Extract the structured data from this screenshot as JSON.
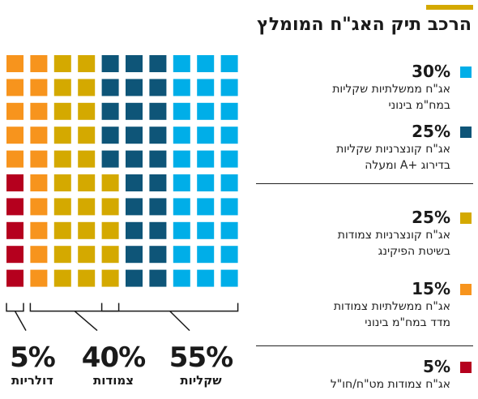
{
  "title": "הרכב תיק האג\"ח המומלץ",
  "colors": {
    "accent": "#d4a900",
    "corp_cpi": "#00aee8",
    "corp_aplus": "#0e5578",
    "cpi_corp": "#d4a900",
    "cpi_gov": "#f7941d",
    "foreign": "#b5001e"
  },
  "legend": [
    {
      "key": "gov_nominal",
      "percent": "30%",
      "color": "#00aee8",
      "lines": [
        "אג\"ח ממשלתיות שקליות",
        "במח\"מ בינוני"
      ]
    },
    {
      "key": "corp_nominal",
      "percent": "25%",
      "color": "#0e5578",
      "lines": [
        "אג\"ח קונצרניות שקליות",
        "בדירוג +A ומעלה"
      ]
    },
    {
      "key": "corp_cpi",
      "percent": "25%",
      "color": "#d4a900",
      "lines": [
        "אג\"ח קונצרניות צמודות",
        "בשיטת הפיקינג"
      ]
    },
    {
      "key": "gov_cpi",
      "percent": "15%",
      "color": "#f7941d",
      "lines": [
        "אג\"ח ממשלתיות צמודות",
        "מדד במח\"מ בינוני"
      ]
    },
    {
      "key": "foreign",
      "percent": "5%",
      "color": "#b5001e",
      "lines": [
        "אג\"ח צמודות מט\"ח/חו\"ל"
      ]
    }
  ],
  "groups": [
    {
      "percent": "55%",
      "label": "שקליות"
    },
    {
      "percent": "40%",
      "label": "צמודות"
    },
    {
      "percent": "5%",
      "label": "דולריות"
    }
  ],
  "chart_data": {
    "type": "waffle",
    "grid": {
      "rows": 10,
      "cols": 10
    },
    "series": [
      {
        "name": "אג\"ח ממשלתיות שקליות במח\"מ בינוני",
        "value": 30,
        "color": "#00aee8"
      },
      {
        "name": "אג\"ח קונצרניות שקליות בדירוג +A ומעלה",
        "value": 25,
        "color": "#0e5578"
      },
      {
        "name": "אג\"ח קונצרניות צמודות בשיטת הפיקינג",
        "value": 25,
        "color": "#d4a900"
      },
      {
        "name": "אג\"ח ממשלתיות צמודות מדד במח\"מ בינוני",
        "value": 15,
        "color": "#f7941d"
      },
      {
        "name": "אג\"ח צמודות מט\"ח/חו\"ל",
        "value": 5,
        "color": "#b5001e"
      }
    ],
    "groups": [
      {
        "name": "שקליות",
        "value": 55
      },
      {
        "name": "צמודות",
        "value": 40
      },
      {
        "name": "דולריות",
        "value": 5
      }
    ]
  }
}
